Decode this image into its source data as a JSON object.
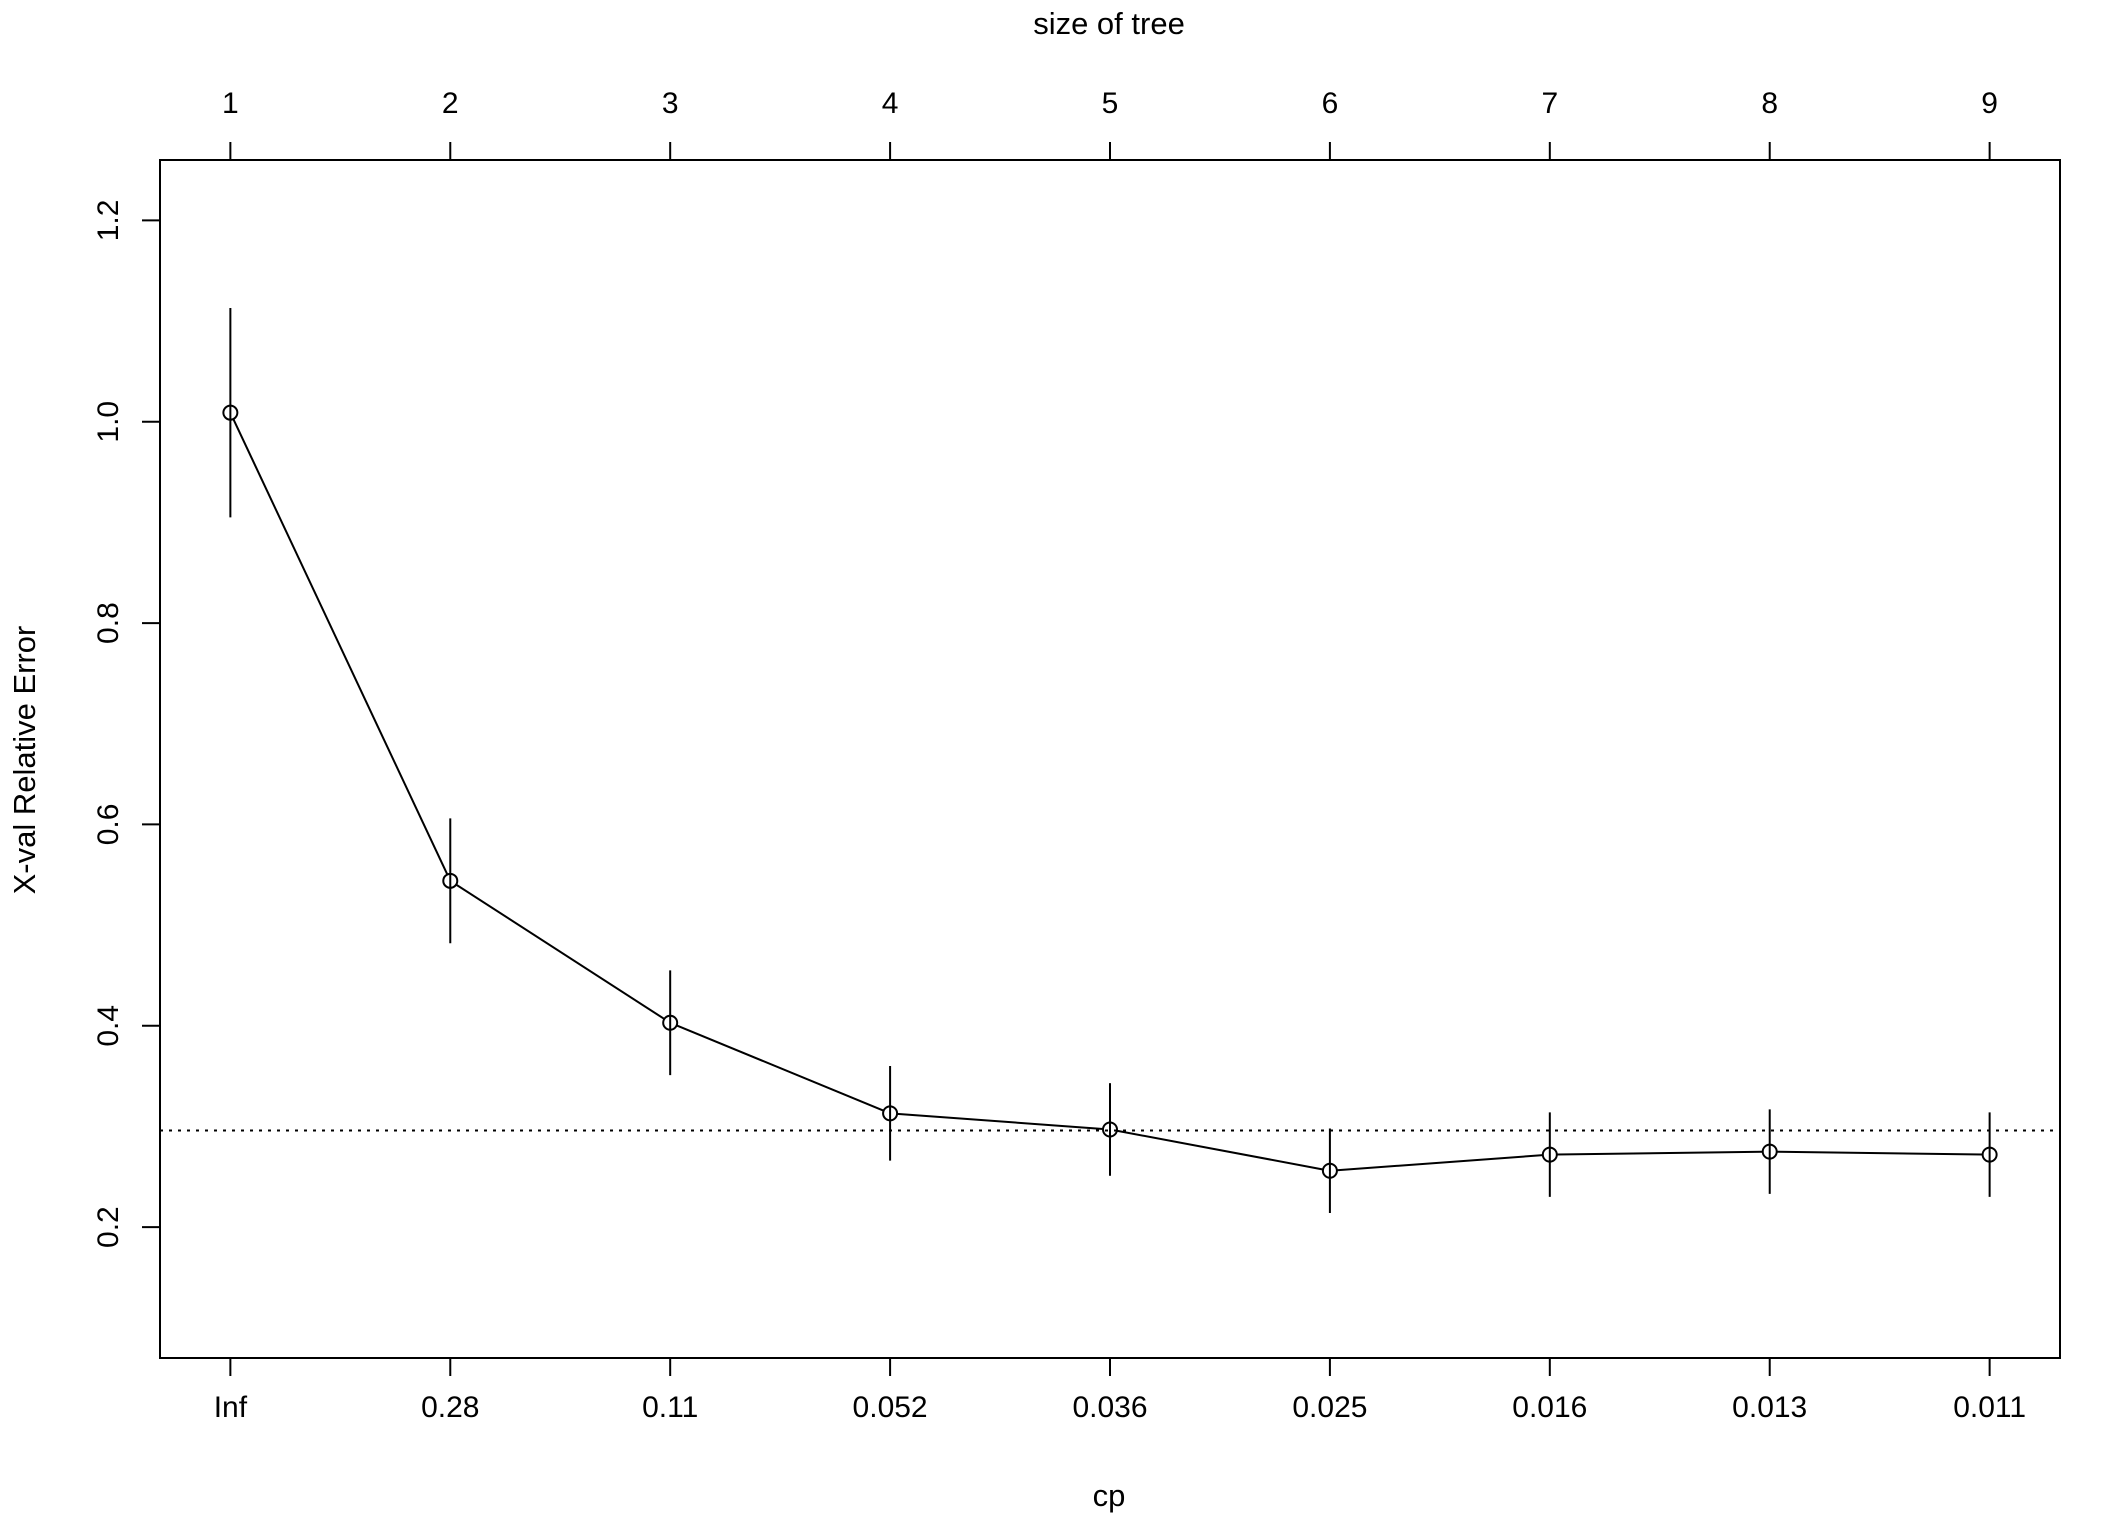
{
  "chart_data": {
    "type": "line",
    "xlabel": "cp",
    "ylabel": "X-val Relative Error",
    "top_axis_label": "size of tree",
    "x_tick_labels": [
      "Inf",
      "0.28",
      "0.11",
      "0.052",
      "0.036",
      "0.025",
      "0.016",
      "0.013",
      "0.011"
    ],
    "top_tick_labels": [
      "1",
      "2",
      "3",
      "4",
      "5",
      "6",
      "7",
      "8",
      "9"
    ],
    "y_ticks": [
      0.2,
      0.4,
      0.6,
      0.8,
      1.0,
      1.2
    ],
    "y_tick_labels": [
      "0.2",
      "0.4",
      "0.6",
      "0.8",
      "1.0",
      "1.2"
    ],
    "ylim": [
      0.07,
      1.26
    ],
    "x_index_range": [
      0.68,
      9.32
    ],
    "series": [
      {
        "values": [
          1.009,
          0.544,
          0.403,
          0.313,
          0.297,
          0.256,
          0.272,
          0.275,
          0.272
        ],
        "error_low": [
          0.905,
          0.482,
          0.351,
          0.266,
          0.251,
          0.214,
          0.23,
          0.233,
          0.23
        ],
        "error_high": [
          1.113,
          0.606,
          0.455,
          0.36,
          0.343,
          0.298,
          0.314,
          0.317,
          0.314
        ]
      }
    ],
    "reference_line_y": 0.296,
    "reference_line_style": "dotted",
    "grid": false,
    "legend": "none",
    "line_color": "#000000"
  }
}
